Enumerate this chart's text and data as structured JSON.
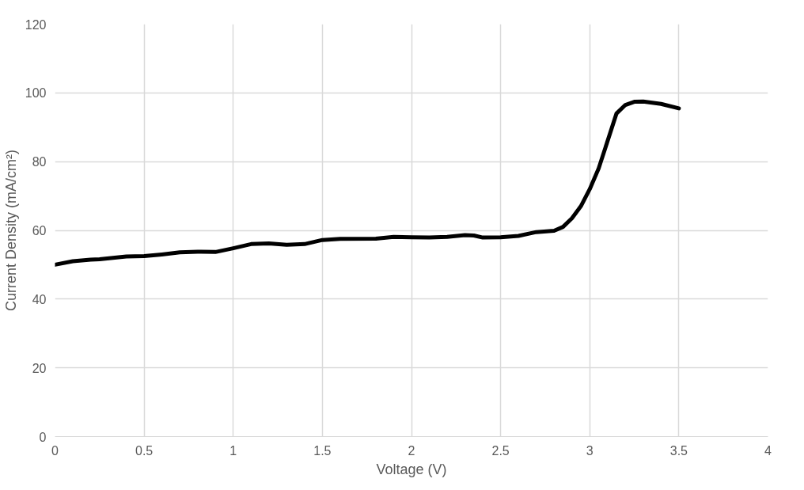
{
  "chart_data": {
    "type": "line",
    "xlabel": "Voltage (V)",
    "ylabel": "Current Density (mA/cm²)",
    "xlim": [
      0,
      4
    ],
    "xticks": [
      0,
      0.5,
      1,
      1.5,
      2,
      2.5,
      3,
      3.5,
      4
    ],
    "ylim": [
      0,
      120
    ],
    "yticks": [
      0,
      20,
      40,
      60,
      80,
      100,
      120
    ],
    "grid": true,
    "series": [
      {
        "color": "#000000",
        "x": [
          0,
          0.1,
          0.2,
          0.25,
          0.4,
          0.5,
          0.6,
          0.7,
          0.8,
          0.9,
          1.0,
          1.1,
          1.2,
          1.3,
          1.4,
          1.5,
          1.6,
          1.8,
          1.9,
          2.0,
          2.1,
          2.2,
          2.3,
          2.35,
          2.4,
          2.5,
          2.6,
          2.7,
          2.8,
          2.85,
          2.9,
          2.95,
          3.0,
          3.05,
          3.1,
          3.15,
          3.2,
          3.25,
          3.3,
          3.4,
          3.5
        ],
        "values": [
          50,
          51,
          51.5,
          51.6,
          52.4,
          52.5,
          53,
          53.6,
          53.8,
          53.7,
          54.8,
          56,
          56.2,
          55.8,
          56,
          57.2,
          57.5,
          57.6,
          58.1,
          58,
          57.9,
          58.1,
          58.6,
          58.5,
          57.9,
          58,
          58.4,
          59.5,
          59.9,
          61,
          63.5,
          67,
          72,
          78,
          86,
          94,
          96.5,
          97.4,
          97.5,
          96.8,
          95.5
        ]
      }
    ]
  }
}
